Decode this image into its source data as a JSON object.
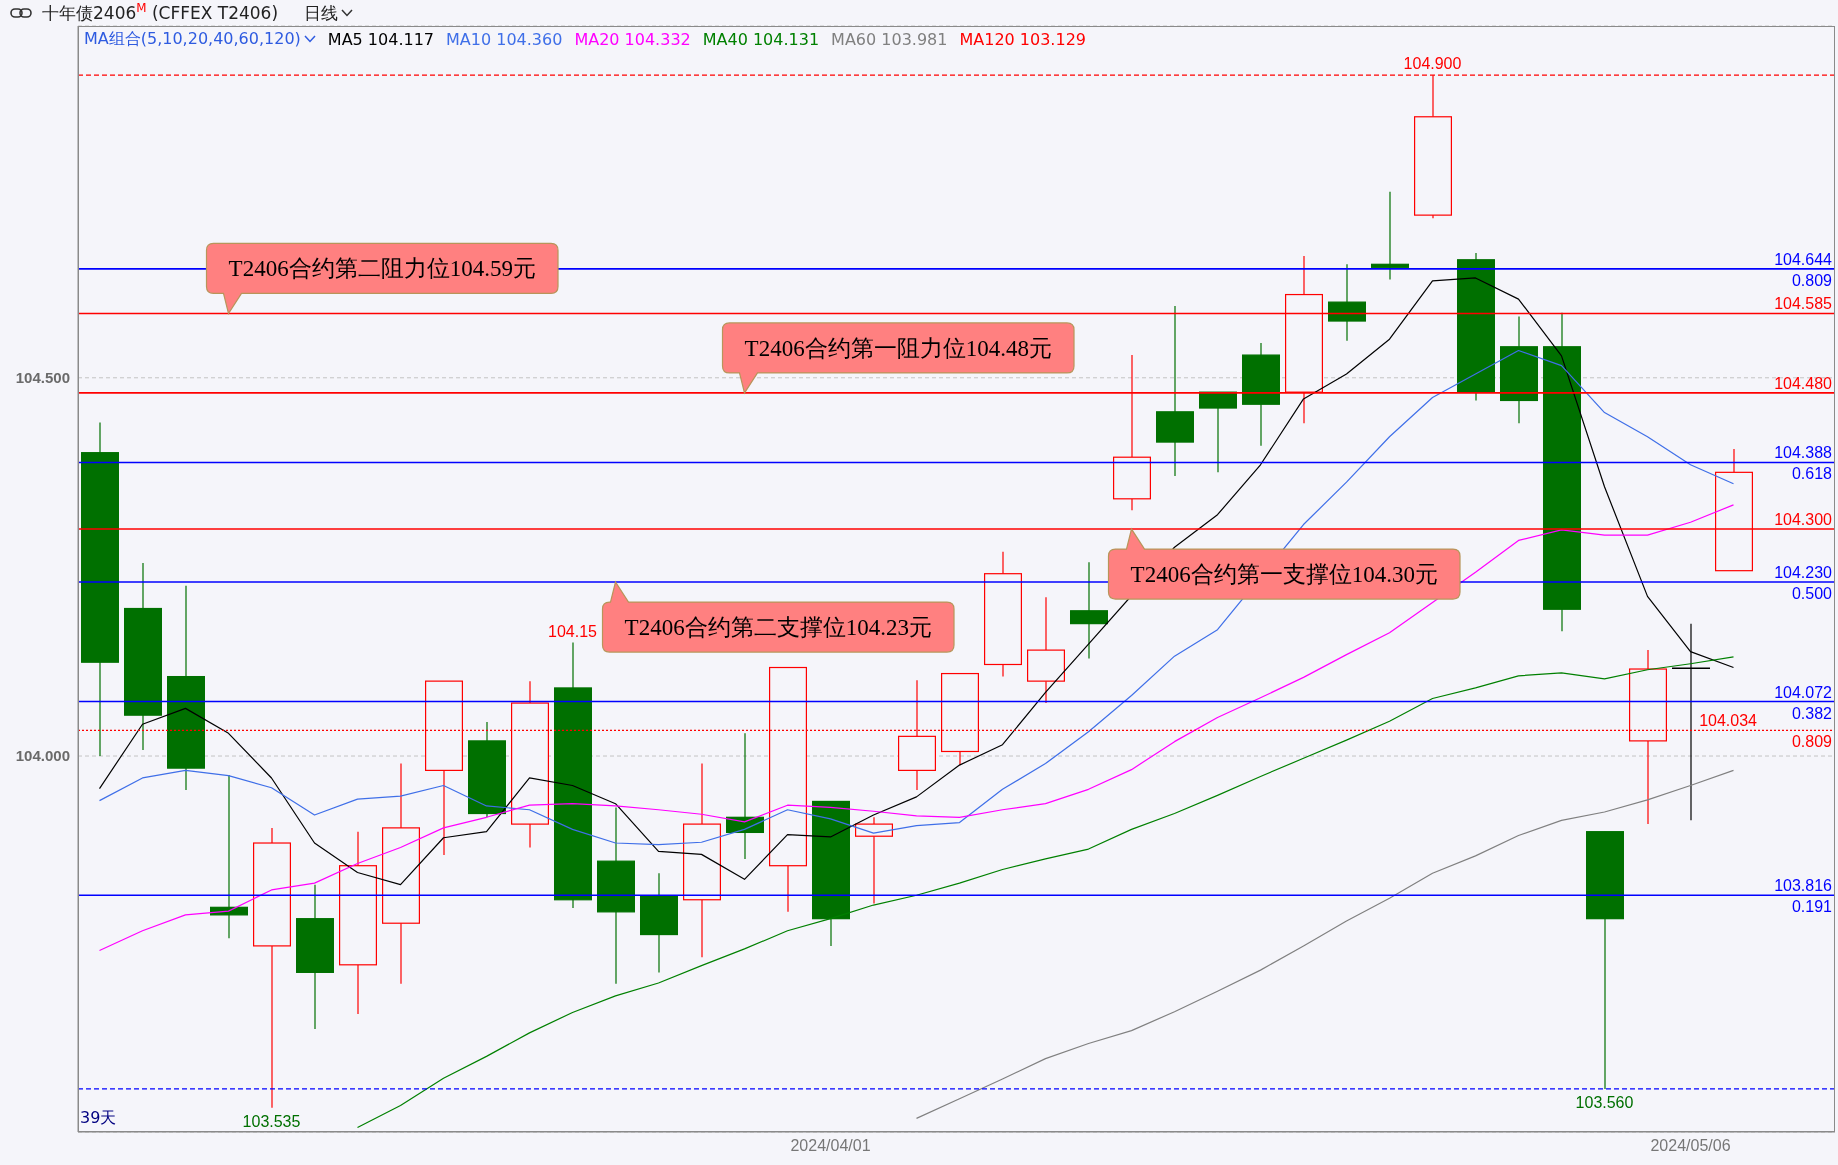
{
  "chart_data": {
    "type": "candlestick",
    "title": "十年债2406$^{M}$ (CFFEX T2406)",
    "subtitle": "日线",
    "legend_title": "MA组合(5,10,20,40,60,120)",
    "categories": [
      null,
      null,
      null,
      null,
      null,
      null,
      null,
      null,
      null,
      null,
      null,
      null,
      null,
      null,
      null,
      null,
      null,
      "2024/04/01",
      null,
      null,
      null,
      null,
      null,
      null,
      null,
      null,
      null,
      null,
      null,
      null,
      null,
      null,
      null,
      null,
      null,
      null,
      null,
      "2024/05/06",
      null
    ],
    "ohlc": [
      [
        104.401,
        104.441,
        104.0,
        104.124
      ],
      [
        104.195,
        104.255,
        104.008,
        104.054
      ],
      [
        104.105,
        104.225,
        103.955,
        103.984
      ],
      [
        103.8,
        103.975,
        103.759,
        103.79
      ],
      [
        103.749,
        103.905,
        103.535,
        103.885
      ],
      [
        103.785,
        103.83,
        103.639,
        103.714
      ],
      [
        103.724,
        103.9,
        103.659,
        103.855
      ],
      [
        103.779,
        103.99,
        103.699,
        103.905
      ],
      [
        103.981,
        104.099,
        103.869,
        104.099
      ],
      [
        104.02,
        104.045,
        103.919,
        103.924
      ],
      [
        103.91,
        104.099,
        103.879,
        104.07
      ],
      [
        104.09,
        104.15,
        103.799,
        103.81
      ],
      [
        103.861,
        103.932,
        103.699,
        103.794
      ],
      [
        103.815,
        103.845,
        103.714,
        103.764
      ],
      [
        103.81,
        103.99,
        103.734,
        103.91
      ],
      [
        103.919,
        104.03,
        103.864,
        103.899
      ],
      [
        103.855,
        104.117,
        103.794,
        104.117
      ],
      [
        103.94,
        103.94,
        103.749,
        103.785
      ],
      [
        103.894,
        103.919,
        103.805,
        103.91
      ],
      [
        103.981,
        104.1,
        103.955,
        104.026
      ],
      [
        104.006,
        104.109,
        103.988,
        104.109
      ],
      [
        104.121,
        104.27,
        104.105,
        104.241
      ],
      [
        104.099,
        104.21,
        104.07,
        104.14
      ],
      [
        104.192,
        104.256,
        104.129,
        104.175
      ],
      [
        104.34,
        104.53,
        104.325,
        104.395
      ],
      [
        104.455,
        104.595,
        104.37,
        104.415
      ],
      [
        104.481,
        104.481,
        104.375,
        104.46
      ],
      [
        104.53,
        104.546,
        104.41,
        104.465
      ],
      [
        104.481,
        104.661,
        104.44,
        104.61
      ],
      [
        104.6,
        104.65,
        104.549,
        104.575
      ],
      [
        104.65,
        104.746,
        104.63,
        104.646
      ],
      [
        104.715,
        104.9,
        104.711,
        104.845
      ],
      [
        104.656,
        104.665,
        104.47,
        104.482
      ],
      [
        104.541,
        104.581,
        104.44,
        104.47
      ],
      [
        104.541,
        104.586,
        104.165,
        104.194
      ],
      [
        103.9,
        103.9,
        103.56,
        103.785
      ],
      [
        104.02,
        104.14,
        103.91,
        104.115
      ],
      [
        104.116,
        104.175,
        103.915,
        104.116
      ],
      [
        104.245,
        104.406,
        104.245,
        104.375
      ]
    ],
    "colors": [
      "#007000",
      "#007000",
      "#007000",
      "#007000",
      "#ff0000",
      "#007000",
      "#ff0000",
      "#ff0000",
      "#ff0000",
      "#007000",
      "#ff0000",
      "#007000",
      "#007000",
      "#007000",
      "#ff0000",
      "#007000",
      "#ff0000",
      "#007000",
      "#ff0000",
      "#ff0000",
      "#ff0000",
      "#ff0000",
      "#ff0000",
      "#007000",
      "#ff0000",
      "#007000",
      "#007000",
      "#007000",
      "#ff0000",
      "#007000",
      "#007000",
      "#ff0000",
      "#007000",
      "#007000",
      "#007000",
      "#007000",
      "#ff0000",
      "#000000",
      "#ff0000"
    ],
    "series": [
      {
        "name": "MA5 104.117",
        "type": "line",
        "color": "#000000",
        "values": [
          103.957,
          104.042,
          104.063,
          104.03,
          103.971,
          103.885,
          103.846,
          103.83,
          103.892,
          103.9,
          103.971,
          103.961,
          103.937,
          103.874,
          103.87,
          103.837,
          103.896,
          103.893,
          103.922,
          103.946,
          103.988,
          104.015,
          104.084,
          104.148,
          null,
          104.276,
          104.319,
          104.385,
          104.472,
          104.505,
          104.551,
          104.628,
          104.632,
          104.604,
          104.529,
          104.356,
          104.211,
          104.138,
          104.117
        ]
      },
      {
        "name": "MA10 104.360",
        "type": "line",
        "color": "#3f6fe8",
        "values": [
          103.941,
          103.971,
          103.981,
          103.974,
          103.958,
          103.922,
          103.943,
          103.947,
          103.961,
          103.934,
          103.929,
          103.903,
          103.885,
          103.883,
          103.886,
          103.903,
          103.929,
          103.917,
          103.898,
          103.908,
          103.912,
          103.956,
          103.99,
          104.032,
          104.08,
          104.132,
          104.167,
          null,
          104.306,
          104.362,
          104.422,
          104.474,
          104.505,
          104.536,
          104.516,
          104.454,
          104.422,
          104.385,
          104.36
        ]
      },
      {
        "name": "MA20 104.332",
        "type": "line",
        "color": "#ff00ff",
        "values": [
          103.743,
          103.769,
          103.79,
          103.795,
          103.823,
          103.832,
          103.858,
          103.879,
          103.905,
          103.919,
          103.935,
          103.937,
          103.934,
          103.929,
          103.923,
          103.913,
          103.935,
          103.932,
          103.927,
          103.921,
          103.919,
          103.929,
          103.937,
          103.956,
          103.982,
          104.019,
          104.051,
          104.077,
          104.104,
          104.134,
          104.163,
          null,
          104.243,
          104.285,
          104.299,
          104.292,
          104.292,
          104.309,
          104.332
        ]
      },
      {
        "name": "MA40 104.131",
        "type": "line",
        "color": "#008000",
        "values": [
          null,
          null,
          null,
          null,
          null,
          null,
          103.509,
          103.538,
          103.574,
          103.603,
          103.634,
          103.661,
          103.683,
          103.7,
          103.723,
          103.745,
          103.769,
          103.785,
          103.803,
          103.816,
          103.832,
          103.85,
          103.864,
          103.877,
          103.903,
          103.924,
          103.948,
          103.973,
          103.997,
          104.021,
          104.046,
          104.076,
          104.09,
          104.106,
          104.11,
          104.102,
          104.114,
          104.122,
          104.131
        ]
      },
      {
        "name": "MA60 103.981",
        "type": "line",
        "color": "#808080",
        "values": [
          null,
          null,
          null,
          null,
          null,
          null,
          null,
          null,
          null,
          null,
          null,
          null,
          null,
          null,
          null,
          null,
          null,
          null,
          null,
          103.521,
          103.547,
          103.573,
          103.6,
          103.62,
          103.637,
          103.662,
          103.689,
          103.717,
          103.749,
          103.782,
          103.812,
          103.845,
          103.868,
          103.895,
          103.915,
          103.926,
          103.942,
          103.961,
          103.981
        ]
      },
      {
        "name": "MA120 103.129",
        "type": "line",
        "color": "#ff0000",
        "values": [
          null,
          null,
          null,
          null,
          null,
          null,
          null,
          null,
          null,
          null,
          null,
          null,
          null,
          null,
          null,
          null,
          null,
          null,
          null,
          null,
          null,
          null,
          null,
          null,
          null,
          null,
          null,
          null,
          null,
          null,
          null,
          null,
          null,
          null,
          null,
          null,
          null,
          null,
          null
        ]
      }
    ],
    "ylim": [
      103.503,
      104.965
    ],
    "yticks": [
      {
        "value": 104,
        "label": "104.000"
      },
      {
        "value": 104.5,
        "label": "104.500"
      }
    ],
    "grid": "y",
    "legend": "top left",
    "ref_lines": [
      {
        "axis": "y",
        "value": 104.9,
        "color": "#ff0000",
        "line_style": "dashed"
      },
      {
        "axis": "y",
        "value": 104.644,
        "color": "#0000ff"
      },
      {
        "axis": "y",
        "value": 104.585,
        "color": "#ff0000"
      },
      {
        "axis": "y",
        "value": 104.48,
        "color": "#ff0000"
      },
      {
        "axis": "y",
        "value": 104.388,
        "color": "#0000ff"
      },
      {
        "axis": "y",
        "value": 104.3,
        "color": "#ff0000"
      },
      {
        "axis": "y",
        "value": 104.23,
        "color": "#0000ff"
      },
      {
        "axis": "y",
        "value": 104.072,
        "color": "#0000ff"
      },
      {
        "axis": "y",
        "value": 104.034,
        "color": "#ff0000",
        "line_style": "dotted"
      },
      {
        "axis": "y",
        "value": 103.816,
        "color": "#0000ff"
      },
      {
        "axis": "y",
        "value": 103.56,
        "color": "#0000ff",
        "line_style": "dashed"
      }
    ],
    "annotations": [
      {
        "text": "T2406合约第二阻力位104.59元",
        "y": 104.585
      },
      {
        "text": "T2406合约第一阻力位104.48元",
        "y": 104.48
      },
      {
        "text": "T2406合约第一支撑位104.30元",
        "y": 104.3
      },
      {
        "text": "T2406合约第二支撑位104.23元",
        "y": 104.23
      },
      {
        "text": "104.644",
        "y": 104.644
      },
      {
        "text": "104.585",
        "y": 104.585
      },
      {
        "text": "104.480",
        "y": 104.48
      },
      {
        "text": "104.388",
        "y": 104.388
      },
      {
        "text": "104.300",
        "y": 104.3
      },
      {
        "text": "104.230",
        "y": 104.23
      },
      {
        "text": "104.072",
        "y": 104.072
      },
      {
        "text": "104.034",
        "y": 104.034
      },
      {
        "text": "103.816",
        "y": 103.816
      },
      {
        "text": "0.809",
        "y": 104.644
      },
      {
        "text": "0.618",
        "y": 104.388
      },
      {
        "text": "0.500",
        "y": 104.23
      },
      {
        "text": "0.382",
        "y": 104.072
      },
      {
        "text": "0.809",
        "y": 104.034
      },
      {
        "text": "0.191",
        "y": 103.816
      },
      {
        "text": "104.900",
        "y": 104.9
      },
      {
        "text": "104.15",
        "y": 104.15
      },
      {
        "text": "103.535",
        "y": 103.535
      },
      {
        "text": "103.560",
        "y": 103.56
      },
      "39天"
    ]
  }
}
